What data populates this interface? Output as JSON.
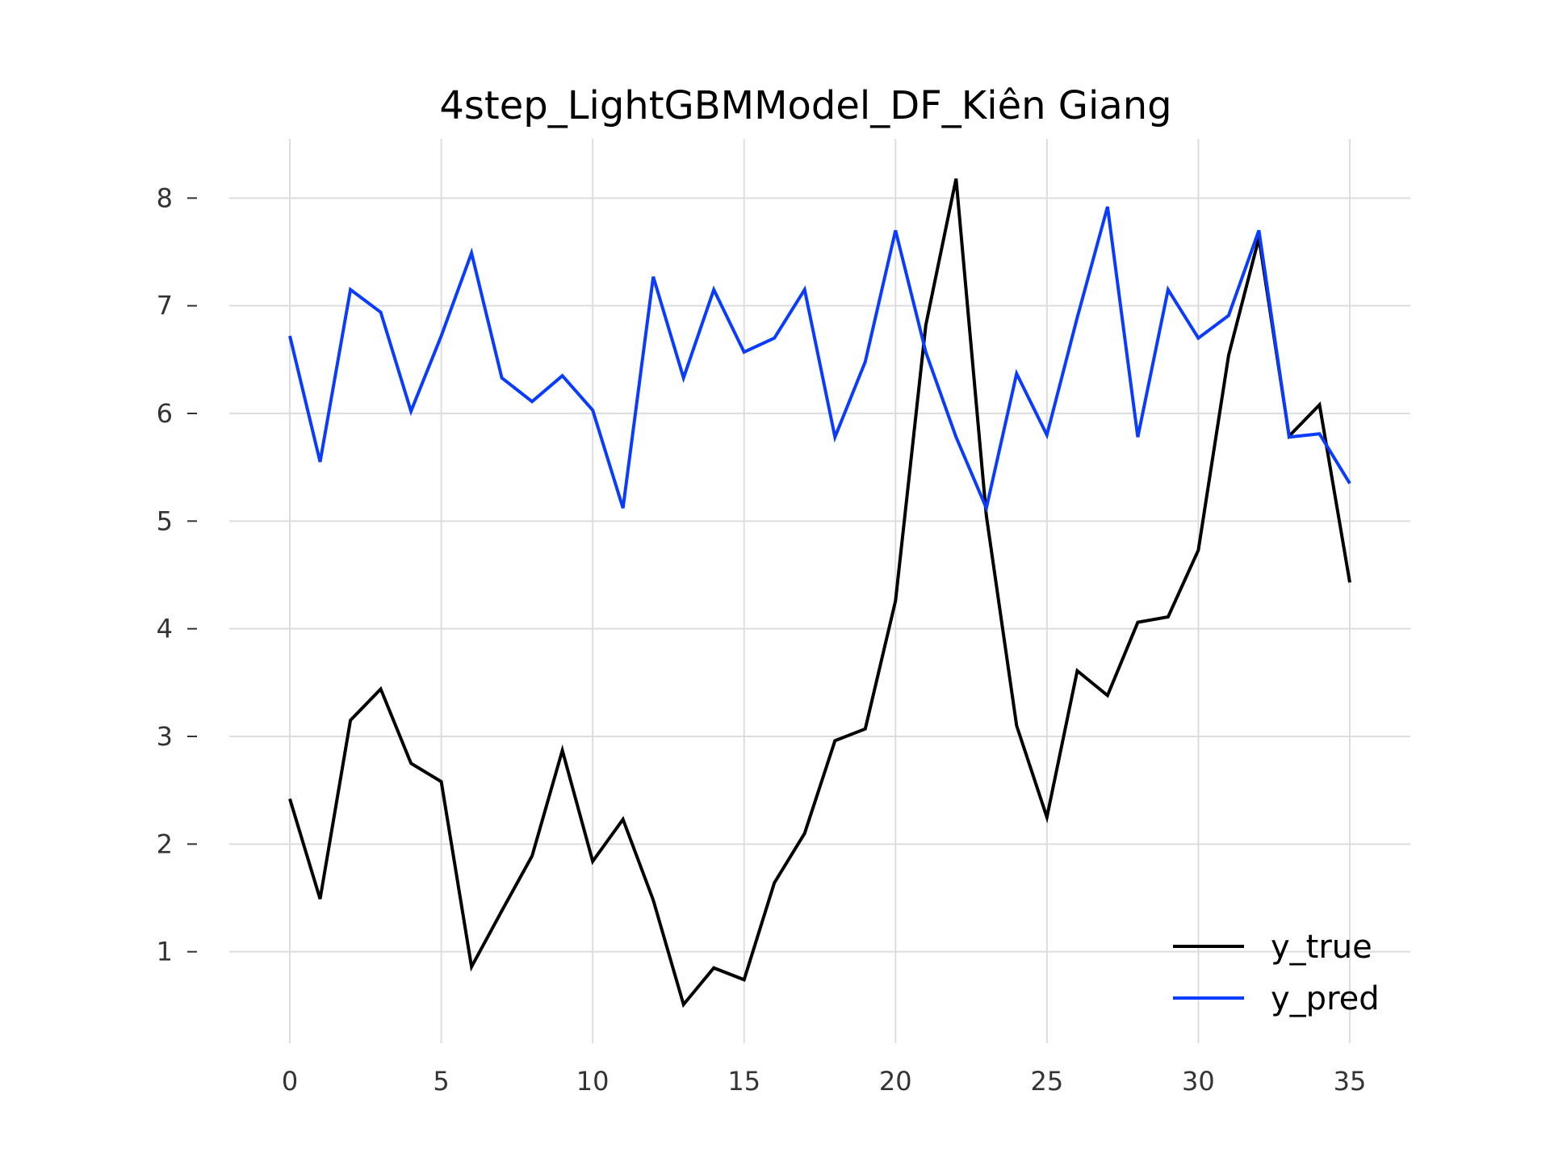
{
  "chart_data": {
    "type": "line",
    "title": "4step_LightGBMModel_DF_Kiên Giang",
    "xlabel": "",
    "ylabel": "",
    "x": [
      0,
      1,
      2,
      3,
      4,
      5,
      6,
      7,
      8,
      9,
      10,
      11,
      12,
      13,
      14,
      15,
      16,
      17,
      18,
      19,
      20,
      21,
      22,
      23,
      24,
      25,
      26,
      27,
      28,
      29,
      30,
      31,
      32,
      33,
      34,
      35
    ],
    "xlim": [
      -2,
      37
    ],
    "ylim": [
      0.15,
      8.55
    ],
    "x_ticks": [
      0,
      5,
      10,
      15,
      20,
      25,
      30,
      35
    ],
    "y_ticks": [
      1,
      2,
      3,
      4,
      5,
      6,
      7,
      8
    ],
    "grid": true,
    "legend_position": "bottom-right",
    "series": [
      {
        "name": "y_true",
        "color": "#000000",
        "values": [
          2.42,
          1.49,
          3.15,
          3.44,
          2.75,
          2.58,
          0.86,
          1.38,
          1.89,
          2.87,
          1.84,
          2.23,
          1.48,
          0.51,
          0.85,
          0.74,
          1.64,
          2.1,
          2.96,
          3.07,
          4.26,
          6.82,
          8.18,
          5.05,
          3.1,
          2.25,
          3.61,
          3.38,
          4.06,
          4.11,
          4.73,
          6.54,
          7.63,
          5.79,
          6.08,
          4.43
        ]
      },
      {
        "name": "y_pred",
        "color": "#0a3cff",
        "values": [
          6.72,
          5.55,
          7.15,
          6.94,
          6.02,
          6.72,
          7.49,
          6.33,
          6.11,
          6.35,
          6.03,
          5.12,
          7.27,
          6.33,
          7.15,
          6.57,
          6.7,
          7.15,
          5.78,
          6.48,
          7.7,
          6.57,
          5.78,
          5.12,
          6.37,
          5.8,
          6.89,
          7.92,
          5.78,
          7.15,
          6.7,
          6.91,
          7.7,
          5.78,
          5.81,
          5.35
        ]
      }
    ]
  }
}
